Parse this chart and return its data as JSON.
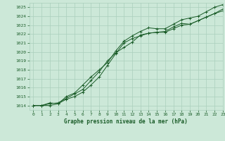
{
  "title": "Graphe pression niveau de la mer (hPa)",
  "bg_color": "#cce8d8",
  "grid_color": "#aacfbc",
  "line_color": "#1a5c28",
  "xlim": [
    -0.5,
    23
  ],
  "ylim": [
    1013.5,
    1025.5
  ],
  "yticks": [
    1014,
    1015,
    1016,
    1017,
    1018,
    1019,
    1020,
    1021,
    1022,
    1023,
    1024,
    1025
  ],
  "xticks": [
    0,
    1,
    2,
    3,
    4,
    5,
    6,
    7,
    8,
    9,
    10,
    11,
    12,
    13,
    14,
    15,
    16,
    17,
    18,
    19,
    20,
    21,
    22,
    23
  ],
  "line1": [
    1014.0,
    1014.0,
    1014.3,
    1014.2,
    1014.7,
    1015.0,
    1015.5,
    1016.3,
    1017.2,
    1018.5,
    1019.8,
    1021.0,
    1021.5,
    1021.8,
    1022.1,
    1022.2,
    1022.3,
    1022.8,
    1023.2,
    1023.1,
    1023.5,
    1023.9,
    1024.3,
    1024.8
  ],
  "line2": [
    1014.0,
    1014.0,
    1014.2,
    1014.3,
    1014.8,
    1015.3,
    1015.8,
    1016.8,
    1017.8,
    1019.0,
    1019.9,
    1020.5,
    1021.1,
    1021.9,
    1022.1,
    1022.2,
    1022.2,
    1022.6,
    1023.0,
    1023.1,
    1023.5,
    1023.9,
    1024.3,
    1024.6
  ],
  "line3": [
    1014.0,
    1014.0,
    1014.0,
    1014.2,
    1015.0,
    1015.4,
    1016.3,
    1017.2,
    1018.0,
    1018.8,
    1020.1,
    1021.2,
    1021.8,
    1022.3,
    1022.7,
    1022.6,
    1022.6,
    1023.1,
    1023.6,
    1023.8,
    1024.0,
    1024.5,
    1025.0,
    1025.3
  ]
}
